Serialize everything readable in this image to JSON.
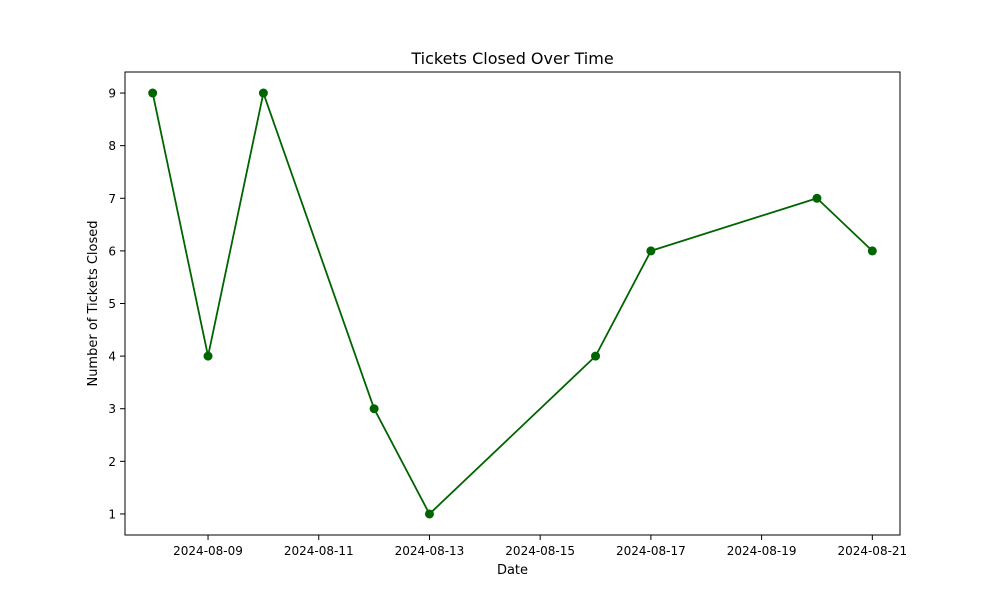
{
  "chart_data": {
    "type": "line",
    "title": "Tickets Closed Over Time",
    "xlabel": "Date",
    "ylabel": "Number of Tickets Closed",
    "x": [
      "2024-08-08",
      "2024-08-09",
      "2024-08-10",
      "2024-08-12",
      "2024-08-13",
      "2024-08-16",
      "2024-08-17",
      "2024-08-20",
      "2024-08-21"
    ],
    "series": [
      {
        "values": [
          9,
          4,
          9,
          3,
          1,
          4,
          6,
          7,
          6
        ]
      }
    ],
    "x_ticks": [
      "2024-08-09",
      "2024-08-11",
      "2024-08-13",
      "2024-08-15",
      "2024-08-17",
      "2024-08-19",
      "2024-08-21"
    ],
    "y_ticks": [
      1,
      2,
      3,
      4,
      5,
      6,
      7,
      8,
      9
    ],
    "xlim": [
      "2024-08-07T12:00",
      "2024-08-21T12:00"
    ],
    "ylim": [
      0.6,
      9.4
    ],
    "grid": false,
    "legend": "none",
    "line_color": "#006400",
    "marker": "circle"
  }
}
